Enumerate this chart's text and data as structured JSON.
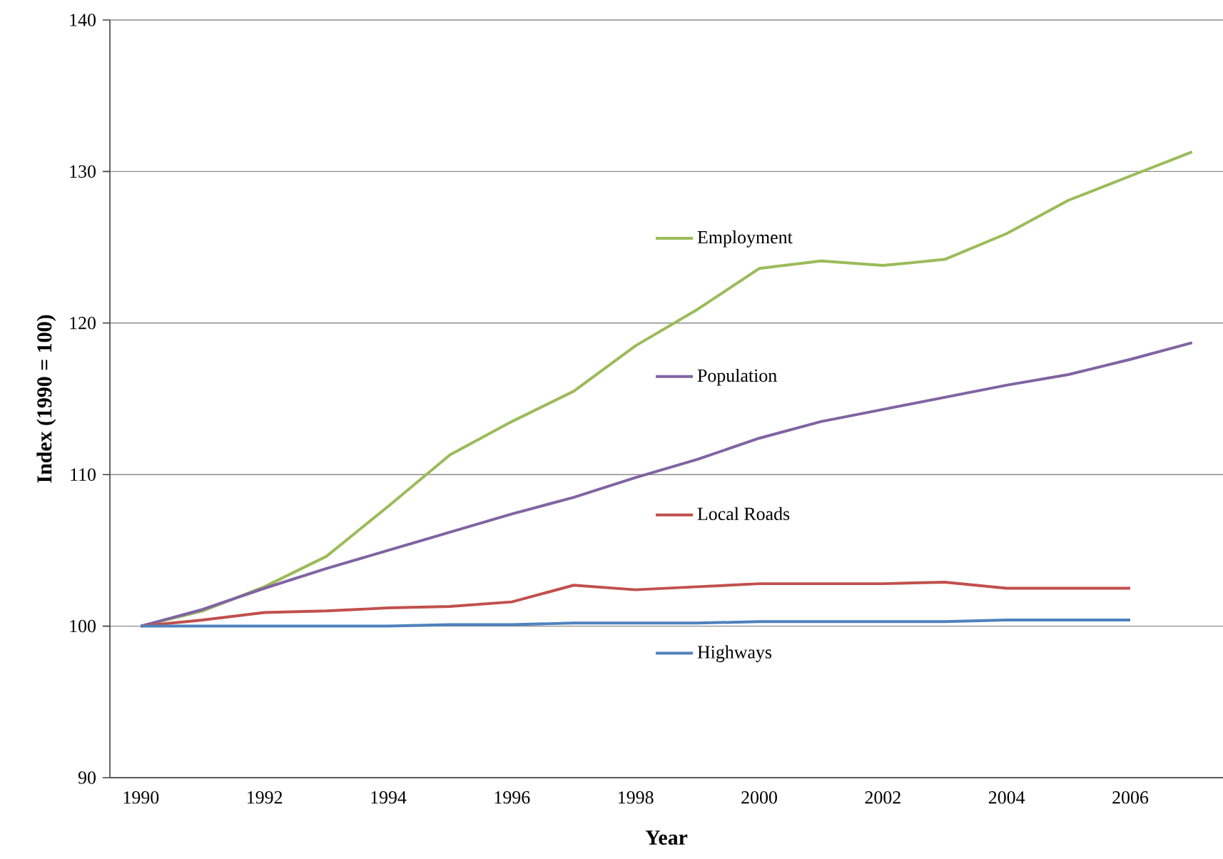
{
  "chart_data": {
    "type": "line",
    "xlabel": "Year",
    "ylabel": "Index (1990 = 100)",
    "categories": [
      "1990",
      null,
      "1992",
      null,
      "1994",
      null,
      "1996",
      null,
      "1998",
      null,
      "2000",
      null,
      "2002",
      null,
      "2004",
      null,
      "2006",
      null
    ],
    "ylim": [
      90,
      140
    ],
    "yticks": [
      90,
      100,
      110,
      120,
      130,
      140
    ],
    "grid": "y",
    "legend": "center",
    "marker": "none",
    "line_style": "solid",
    "series": [
      {
        "name": "Employment",
        "color": "#9bbb59",
        "values": [
          100,
          101.0,
          102.6,
          104.6,
          107.9,
          111.3,
          113.5,
          115.5,
          118.5,
          120.9,
          123.6,
          124.1,
          123.8,
          124.2,
          125.9,
          128.1,
          129.7,
          131.3
        ]
      },
      {
        "name": "Population",
        "color": "#8064a2",
        "values": [
          100,
          101.1,
          102.5,
          103.8,
          105.0,
          106.2,
          107.4,
          108.5,
          109.8,
          111.0,
          112.4,
          113.5,
          114.3,
          115.1,
          115.9,
          116.6,
          117.6,
          118.7
        ]
      },
      {
        "name": "Local Roads",
        "color": "#c0504d",
        "values": [
          100,
          100.4,
          100.9,
          101.0,
          101.2,
          101.3,
          101.6,
          102.7,
          102.4,
          102.6,
          102.8,
          102.8,
          102.8,
          102.9,
          102.5,
          102.5,
          102.5,
          null
        ]
      },
      {
        "name": "Highways",
        "color": "#4f81bd",
        "values": [
          100,
          100,
          100,
          100,
          100,
          100.1,
          100.1,
          100.2,
          100.2,
          100.2,
          100.3,
          100.3,
          100.3,
          100.3,
          100.4,
          100.4,
          100.4,
          null
        ]
      }
    ]
  }
}
